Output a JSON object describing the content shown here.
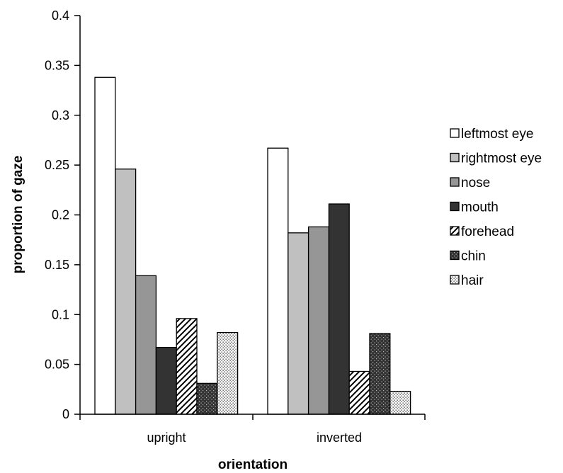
{
  "chart_data": {
    "type": "bar",
    "title": "",
    "xlabel": "orientation",
    "ylabel": "proportion of gaze",
    "categories": [
      "upright",
      "inverted"
    ],
    "ylim": [
      0,
      0.4
    ],
    "y_ticks": [
      "0",
      "0.05",
      "0.1",
      "0.15",
      "0.2",
      "0.25",
      "0.3",
      "0.35",
      "0.4"
    ],
    "y_tick_values": [
      0,
      0.05,
      0.1,
      0.15,
      0.2,
      0.25,
      0.3,
      0.35,
      0.4
    ],
    "grid": false,
    "legend_position": "right",
    "series": [
      {
        "name": "leftmost eye",
        "values": [
          0.338,
          0.267
        ],
        "fill": "#ffffff",
        "pattern": "solid"
      },
      {
        "name": "rightmost eye",
        "values": [
          0.246,
          0.182
        ],
        "fill": "#c0c0c0",
        "pattern": "solid"
      },
      {
        "name": "nose",
        "values": [
          0.139,
          0.188
        ],
        "fill": "#969696",
        "pattern": "solid"
      },
      {
        "name": "mouth",
        "values": [
          0.067,
          0.211
        ],
        "fill": "#333333",
        "pattern": "solid"
      },
      {
        "name": "forehead",
        "values": [
          0.096,
          0.043
        ],
        "fill": "#ffffff",
        "pattern": "diagonal-hatch"
      },
      {
        "name": "chin",
        "values": [
          0.031,
          0.081
        ],
        "fill": "#333333",
        "pattern": "dots-light"
      },
      {
        "name": "hair",
        "values": [
          0.082,
          0.023
        ],
        "fill": "#ffffff",
        "pattern": "dots-dark"
      }
    ]
  }
}
